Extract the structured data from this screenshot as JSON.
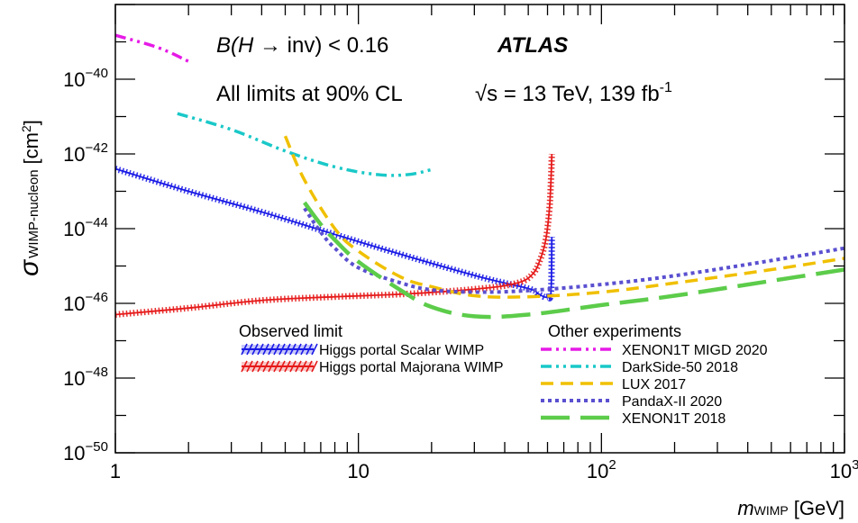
{
  "chart_data": {
    "type": "line",
    "title": "",
    "xlabel": {
      "symbol": "m",
      "sub": "WIMP",
      "unit": "[GeV]"
    },
    "ylabel": {
      "symbol": "σ",
      "sub": "WIMP-nucleon",
      "unit_base": "[cm",
      "unit_sup": "2",
      "unit_close": "]"
    },
    "x_scale": "log",
    "y_scale": "log",
    "xlim": [
      1,
      1000
    ],
    "ylim": [
      1e-50,
      1e-38
    ],
    "x_ticks": [
      {
        "value": 1,
        "label": "1",
        "sup": ""
      },
      {
        "value": 10,
        "label": "10",
        "sup": ""
      },
      {
        "value": 100,
        "label": "10",
        "sup": "2"
      },
      {
        "value": 1000,
        "label": "10",
        "sup": "3"
      }
    ],
    "y_ticks": [
      {
        "value": 1e-50,
        "label": "10",
        "sup": "−50"
      },
      {
        "value": 1e-48,
        "label": "10",
        "sup": "−48"
      },
      {
        "value": 1e-46,
        "label": "10",
        "sup": "−46"
      },
      {
        "value": 1e-44,
        "label": "10",
        "sup": "−44"
      },
      {
        "value": 1e-42,
        "label": "10",
        "sup": "−42"
      },
      {
        "value": 1e-40,
        "label": "10",
        "sup": "−40"
      }
    ],
    "grid": false,
    "annotations": {
      "bh_pre": "B(H ",
      "bh_arrow": "→",
      "bh_post": " inv) < 0.16",
      "atlas": "ATLAS",
      "cl": "All limits at 90% CL",
      "sqrt": "√s",
      "energy": " = 13 TeV, 139 fb",
      "lumi_sup": "-1"
    },
    "legend": {
      "observed_header": "Observed limit",
      "other_header": "Other experiments",
      "placement": "bottom-center"
    },
    "series": [
      {
        "name": "Higgs portal Scalar WIMP",
        "group": "observed",
        "color": "#1a1ae6",
        "style": "hatched",
        "x": [
          1,
          2,
          4,
          8,
          16,
          32,
          50,
          55,
          58,
          60,
          62,
          62.5
        ],
        "y": [
          4e-43,
          1e-43,
          2.8e-44,
          7e-45,
          1.8e-45,
          5e-46,
          2.5e-46,
          1.8e-46,
          1.5e-46,
          1.5e-46,
          2e-46,
          6e-45
        ]
      },
      {
        "name": "Higgs portal Majorana WIMP",
        "group": "observed",
        "color": "#e61a1a",
        "style": "hatched",
        "x": [
          1,
          2,
          4,
          8,
          16,
          32,
          45,
          52,
          56,
          59,
          61,
          62,
          62.5
        ],
        "y": [
          5e-47,
          7.5e-47,
          1.2e-46,
          1.5e-46,
          1.8e-46,
          2.5e-46,
          3.5e-46,
          6e-46,
          1.5e-45,
          5e-45,
          3e-44,
          2e-43,
          1e-42
        ]
      },
      {
        "name": "XENON1T MIGD 2020",
        "group": "other",
        "color": "#e61ae6",
        "style": "dashdotdot",
        "x": [
          1,
          1.5,
          2
        ],
        "y": [
          1.5e-39,
          7e-40,
          3e-40
        ]
      },
      {
        "name": "DarkSide-50 2018",
        "group": "other",
        "color": "#1ac8c8",
        "style": "dashdotdot",
        "x": [
          1.8,
          3,
          5,
          8,
          12,
          16,
          20
        ],
        "y": [
          1.2e-41,
          4.5e-42,
          1.2e-42,
          4.5e-43,
          2.8e-43,
          2.8e-43,
          3.8e-43
        ]
      },
      {
        "name": "LUX 2017",
        "group": "other",
        "color": "#f0c000",
        "style": "dashed",
        "x": [
          5,
          6,
          8,
          10,
          15,
          20,
          30,
          50,
          100,
          200,
          500,
          1000
        ],
        "y": [
          3e-42,
          2e-43,
          1e-44,
          2.5e-45,
          5e-46,
          2.8e-46,
          1.6e-46,
          1.5e-46,
          2e-46,
          3.5e-46,
          8e-46,
          1.6e-45
        ]
      },
      {
        "name": "PandaX-II 2020",
        "group": "other",
        "color": "#5a50d0",
        "style": "dotted",
        "x": [
          6,
          7,
          8,
          10,
          15,
          20,
          30,
          50,
          100,
          200,
          500,
          1000
        ],
        "y": [
          3.5e-44,
          8e-45,
          3e-45,
          9e-46,
          3.5e-46,
          2.3e-46,
          2e-46,
          2.2e-46,
          3.2e-46,
          5.5e-46,
          1.4e-45,
          3e-45
        ]
      },
      {
        "name": "XENON1T 2018",
        "group": "other",
        "color": "#5ccc4a",
        "style": "longdash",
        "x": [
          6,
          7,
          8,
          10,
          15,
          20,
          30,
          50,
          100,
          200,
          500,
          1000
        ],
        "y": [
          5e-44,
          1.3e-44,
          5e-45,
          1.3e-45,
          2.2e-46,
          8e-47,
          4.5e-47,
          5e-47,
          9e-47,
          1.6e-46,
          4e-46,
          8e-46
        ]
      }
    ]
  }
}
